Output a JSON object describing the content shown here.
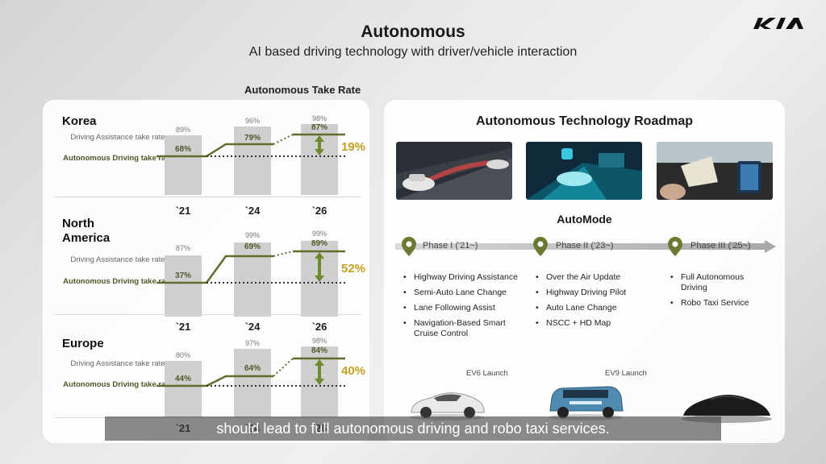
{
  "header": {
    "title": "Autonomous",
    "subtitle": "AI based driving technology with driver/vehicle interaction",
    "logo_name": "kia-logo"
  },
  "take_rate": {
    "title": "Autonomous Take Rate",
    "label_assist": "Driving Assistance take rate",
    "label_auto": "Autonomous Driving take rate",
    "years": [
      "`21",
      "`24",
      "`26"
    ],
    "accent_color": "#c4a020",
    "line_color": "#5f6e2d",
    "regions": [
      {
        "name": "Korea",
        "assist": [
          "89%",
          "96%",
          "98%"
        ],
        "auto": [
          "68%",
          "79%",
          "87%"
        ],
        "delta": "19%",
        "assist_values": [
          89,
          96,
          98
        ],
        "auto_values": [
          68,
          79,
          87
        ]
      },
      {
        "name": "North America",
        "assist": [
          "87%",
          "99%",
          "99%"
        ],
        "auto": [
          "37%",
          "69%",
          "89%"
        ],
        "delta": "52%",
        "assist_values": [
          87,
          99,
          99
        ],
        "auto_values": [
          37,
          69,
          89
        ]
      },
      {
        "name": "Europe",
        "assist": [
          "80%",
          "97%",
          "98%"
        ],
        "auto": [
          "44%",
          "64%",
          "84%"
        ],
        "delta": "40%",
        "assist_values": [
          80,
          97,
          98
        ],
        "auto_values": [
          44,
          64,
          84
        ]
      }
    ]
  },
  "roadmap": {
    "title": "Autonomous Technology Roadmap",
    "mode": "AutoMode",
    "phases": [
      {
        "label": "Phase I ('21~)",
        "items": [
          "Highway Driving Assistance",
          "Semi-Auto Lane Change",
          "Lane Following Assist",
          "Navigation-Based Smart Cruise Control"
        ]
      },
      {
        "label": "Phase II ('23~)",
        "items": [
          "Over the Air Update",
          "Highway Driving Pilot",
          "Auto Lane Change",
          "NSCC + HD Map"
        ]
      },
      {
        "label": "Phase III ('25~)",
        "items": [
          "Full Autonomous Driving",
          "Robo Taxi Service"
        ]
      }
    ],
    "launches": [
      "EV6 Launch",
      "EV9 Launch"
    ]
  },
  "caption": {
    "text": "should lead to full autonomous driving and robo taxi services."
  }
}
